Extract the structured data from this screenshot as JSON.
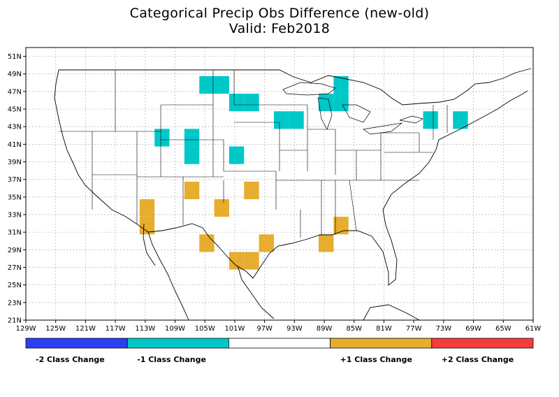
{
  "title": "Categorical Precip Obs Difference (new-old)",
  "subtitle": "Valid: Feb2018",
  "map": {
    "lon_ticks": [
      "129W",
      "125W",
      "121W",
      "117W",
      "113W",
      "109W",
      "105W",
      "101W",
      "97W",
      "93W",
      "89W",
      "85W",
      "81W",
      "77W",
      "73W",
      "69W",
      "65W",
      "61W"
    ],
    "lat_ticks": [
      "51N",
      "49N",
      "47N",
      "45N",
      "43N",
      "41N",
      "39N",
      "37N",
      "35N",
      "33N",
      "31N",
      "29N",
      "27N",
      "25N",
      "23N",
      "21N"
    ],
    "grid": "dotted",
    "colors": {
      "minus2": "#2b3ff5",
      "minus1": "#00c8c8",
      "zero": "#ffffff",
      "plus1": "#e6ad2e",
      "plus2": "#f53c3c"
    }
  },
  "cells": [
    {
      "lon": -104.75,
      "lat": 47.75,
      "value": -1
    },
    {
      "lon": -102.75,
      "lat": 47.75,
      "value": -1
    },
    {
      "lon": -100.75,
      "lat": 45.75,
      "value": -1
    },
    {
      "lon": -98.75,
      "lat": 45.75,
      "value": -1
    },
    {
      "lon": -94.75,
      "lat": 43.75,
      "value": -1
    },
    {
      "lon": -92.75,
      "lat": 43.75,
      "value": -1
    },
    {
      "lon": -86.75,
      "lat": 47.75,
      "value": -1
    },
    {
      "lon": -86.75,
      "lat": 45.75,
      "value": -1
    },
    {
      "lon": -88.75,
      "lat": 45.75,
      "value": -1
    },
    {
      "lon": -74.75,
      "lat": 43.75,
      "value": -1
    },
    {
      "lon": -70.75,
      "lat": 43.75,
      "value": -1
    },
    {
      "lon": -110.75,
      "lat": 41.75,
      "value": -1
    },
    {
      "lon": -106.75,
      "lat": 41.75,
      "value": -1
    },
    {
      "lon": -106.75,
      "lat": 39.75,
      "value": -1
    },
    {
      "lon": -100.75,
      "lat": 39.75,
      "value": -1
    },
    {
      "lon": -112.75,
      "lat": 33.75,
      "value": 1
    },
    {
      "lon": -112.75,
      "lat": 31.75,
      "value": 1
    },
    {
      "lon": -106.75,
      "lat": 35.75,
      "value": 1
    },
    {
      "lon": -98.75,
      "lat": 35.75,
      "value": 1
    },
    {
      "lon": -102.75,
      "lat": 33.75,
      "value": 1
    },
    {
      "lon": -104.75,
      "lat": 29.75,
      "value": 1
    },
    {
      "lon": -96.75,
      "lat": 29.75,
      "value": 1
    },
    {
      "lon": -100.75,
      "lat": 27.75,
      "value": 1
    },
    {
      "lon": -98.75,
      "lat": 27.75,
      "value": 1
    },
    {
      "lon": -86.75,
      "lat": 31.75,
      "value": 1
    },
    {
      "lon": -88.75,
      "lat": 29.75,
      "value": 1
    }
  ],
  "legend": [
    {
      "label": "-2 Class Change",
      "color": "#2b3ff5"
    },
    {
      "label": "-1 Class Change",
      "color": "#00c8c8"
    },
    {
      "label": "",
      "color": "#ffffff"
    },
    {
      "label": "+1 Class Change",
      "color": "#e6ad2e"
    },
    {
      "label": "+2 Class Change",
      "color": "#f53c3c"
    }
  ]
}
